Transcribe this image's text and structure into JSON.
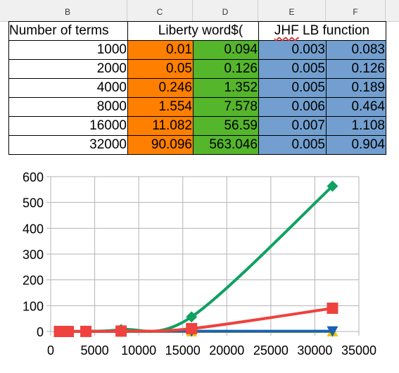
{
  "column_headers": [
    "B",
    "C",
    "D",
    "E",
    "F"
  ],
  "table": {
    "header": {
      "number_of_terms": "Number of terms",
      "liberty": "Liberty word$(",
      "jhf_prefix": "JHF",
      "jhf_rest": " LB function"
    },
    "rows": [
      {
        "terms": "1000",
        "c": "0.01",
        "d": "0.094",
        "e": "0.003",
        "f": "0.083"
      },
      {
        "terms": "2000",
        "c": "0.05",
        "d": "0.126",
        "e": "0.005",
        "f": "0.126"
      },
      {
        "terms": "4000",
        "c": "0.246",
        "d": "1.352",
        "e": "0.005",
        "f": "0.189"
      },
      {
        "terms": "8000",
        "c": "1.554",
        "d": "7.578",
        "e": "0.006",
        "f": "0.464"
      },
      {
        "terms": "16000",
        "c": "11.082",
        "d": "56.59",
        "e": "0.007",
        "f": "1.108"
      },
      {
        "terms": "32000",
        "c": "90.096",
        "d": "563.046",
        "e": "0.005",
        "f": "0.904"
      }
    ]
  },
  "colors": {
    "orange": "#ff7f00",
    "green": "#55b52b",
    "blue": "#729fcf"
  },
  "chart_data": {
    "type": "line",
    "title": "",
    "xlabel": "",
    "ylabel": "",
    "xlim": [
      0,
      35000
    ],
    "ylim": [
      0,
      600
    ],
    "x_ticks": [
      0,
      5000,
      10000,
      15000,
      20000,
      25000,
      30000,
      35000
    ],
    "y_ticks": [
      0,
      100,
      200,
      300,
      400,
      500,
      600
    ],
    "grid": true,
    "legend": "none",
    "x": [
      1000,
      2000,
      4000,
      8000,
      16000,
      32000
    ],
    "series": [
      {
        "color": "#ef413d",
        "marker": "square",
        "values": [
          0.01,
          0.05,
          0.246,
          1.554,
          11.082,
          90.096
        ]
      },
      {
        "color": "#0fa162",
        "marker": "diamond",
        "values": [
          0.094,
          0.126,
          1.352,
          7.578,
          56.59,
          563.046
        ]
      },
      {
        "color": "#f7c300",
        "marker": "triangle",
        "values": [
          0.003,
          0.005,
          0.005,
          0.006,
          0.007,
          0.005
        ]
      },
      {
        "color": "#1763b0",
        "marker": "triangle-down",
        "values": [
          0.083,
          0.126,
          0.189,
          0.464,
          1.108,
          0.904
        ]
      }
    ]
  }
}
